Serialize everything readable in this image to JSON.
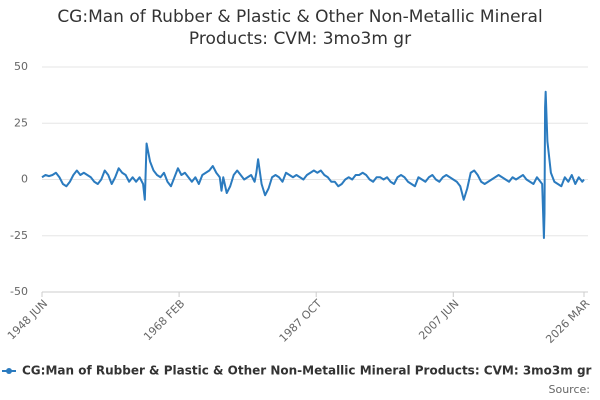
{
  "chart_data": {
    "type": "line",
    "title": "CG:Man of Rubber & Plastic & Other Non-Metallic Mineral Products: CVM: 3mo3m gr",
    "source": "Source:",
    "x": [
      "1948-06",
      "1948-12",
      "1949-06",
      "1949-12",
      "1950-06",
      "1950-12",
      "1951-06",
      "1951-12",
      "1952-06",
      "1952-12",
      "1953-06",
      "1953-12",
      "1954-06",
      "1954-12",
      "1955-06",
      "1955-12",
      "1956-06",
      "1956-12",
      "1957-06",
      "1957-12",
      "1958-06",
      "1958-12",
      "1959-06",
      "1959-12",
      "1960-06",
      "1960-12",
      "1961-06",
      "1961-12",
      "1962-06",
      "1962-12",
      "1963-03",
      "1963-06",
      "1963-12",
      "1964-06",
      "1964-12",
      "1965-06",
      "1965-12",
      "1966-06",
      "1966-12",
      "1967-06",
      "1967-12",
      "1968-06",
      "1968-12",
      "1969-06",
      "1969-12",
      "1970-06",
      "1970-12",
      "1971-06",
      "1971-12",
      "1972-06",
      "1972-12",
      "1973-06",
      "1973-12",
      "1974-03",
      "1974-06",
      "1974-12",
      "1975-06",
      "1975-12",
      "1976-06",
      "1976-12",
      "1977-06",
      "1977-12",
      "1978-06",
      "1978-12",
      "1979-03",
      "1979-06",
      "1979-12",
      "1980-06",
      "1980-12",
      "1981-06",
      "1981-12",
      "1982-06",
      "1982-12",
      "1983-06",
      "1983-12",
      "1984-06",
      "1984-12",
      "1985-06",
      "1985-12",
      "1986-06",
      "1986-12",
      "1987-06",
      "1987-12",
      "1988-06",
      "1988-12",
      "1989-06",
      "1989-12",
      "1990-06",
      "1990-12",
      "1991-06",
      "1991-12",
      "1992-06",
      "1992-12",
      "1993-06",
      "1993-12",
      "1994-06",
      "1994-12",
      "1995-06",
      "1995-12",
      "1996-06",
      "1996-12",
      "1997-06",
      "1997-12",
      "1998-06",
      "1998-12",
      "1999-06",
      "1999-12",
      "2000-06",
      "2000-12",
      "2001-06",
      "2001-12",
      "2002-06",
      "2002-12",
      "2003-06",
      "2003-12",
      "2004-06",
      "2004-12",
      "2005-06",
      "2005-12",
      "2006-06",
      "2006-12",
      "2007-06",
      "2007-12",
      "2008-06",
      "2008-12",
      "2009-06",
      "2009-12",
      "2010-06",
      "2010-12",
      "2011-06",
      "2011-12",
      "2012-06",
      "2012-12",
      "2013-06",
      "2013-12",
      "2014-06",
      "2014-12",
      "2015-06",
      "2015-12",
      "2016-06",
      "2016-12",
      "2017-06",
      "2017-12",
      "2018-06",
      "2018-12",
      "2019-06",
      "2019-12",
      "2020-03",
      "2020-06",
      "2020-07",
      "2020-08",
      "2020-09",
      "2020-12",
      "2021-06",
      "2021-12",
      "2022-06",
      "2022-12",
      "2023-06",
      "2023-12",
      "2024-06",
      "2024-12",
      "2025-06",
      "2025-12",
      "2026-03"
    ],
    "series": [
      {
        "name": "CG:Man of Rubber & Plastic & Other Non-Metallic Mineral Products: CVM: 3mo3m gr",
        "color": "#2b7bbf",
        "values": [
          1,
          2,
          1.5,
          2,
          3,
          1,
          -2,
          -3,
          -1,
          2,
          4,
          2,
          3,
          2,
          1,
          -1,
          -2,
          0,
          4,
          2,
          -2,
          1,
          5,
          3,
          2,
          -1,
          1,
          -1,
          1,
          -2,
          -9,
          16,
          8,
          4,
          2,
          1,
          3,
          -1,
          -3,
          1,
          5,
          2,
          3,
          1,
          -1,
          1,
          -2,
          2,
          3,
          4,
          6,
          3,
          1,
          -5,
          1,
          -6,
          -3,
          2,
          4,
          2,
          0,
          1,
          2,
          -1,
          3,
          9,
          -2,
          -7,
          -4,
          1,
          2,
          1,
          -1,
          3,
          2,
          1,
          2,
          1,
          0,
          2,
          3,
          4,
          3,
          4,
          2,
          1,
          -1,
          -1,
          -3,
          -2,
          0,
          1,
          0,
          2,
          2,
          3,
          2,
          0,
          -1,
          1,
          1,
          0,
          1,
          -1,
          -2,
          1,
          2,
          1,
          -1,
          -2,
          -3,
          1,
          0,
          -1,
          1,
          2,
          0,
          -1,
          1,
          2,
          1,
          0,
          -1,
          -3,
          -9,
          -4,
          3,
          4,
          2,
          -1,
          -2,
          -1,
          0,
          1,
          2,
          1,
          0,
          -1,
          1,
          0,
          1,
          2,
          0,
          -1,
          -2,
          1,
          -1,
          -2,
          -26,
          -15,
          32,
          39,
          17,
          3,
          -1,
          -2,
          -3,
          1,
          -1,
          2,
          -2,
          1,
          -1,
          0
        ]
      }
    ],
    "xlim": [
      "1948-06",
      "2026-03"
    ],
    "xticks": [
      {
        "value": "1948-06",
        "label": "1948 JUN"
      },
      {
        "value": "1968-02",
        "label": "1968 FEB"
      },
      {
        "value": "1987-10",
        "label": "1987 OCT"
      },
      {
        "value": "2007-06",
        "label": "2007 JUN"
      },
      {
        "value": "2026-03",
        "label": "2026 MAR"
      }
    ],
    "ylim": [
      -50,
      50
    ],
    "yticks": [
      -50,
      -25,
      0,
      25,
      50
    ],
    "grid": true
  }
}
